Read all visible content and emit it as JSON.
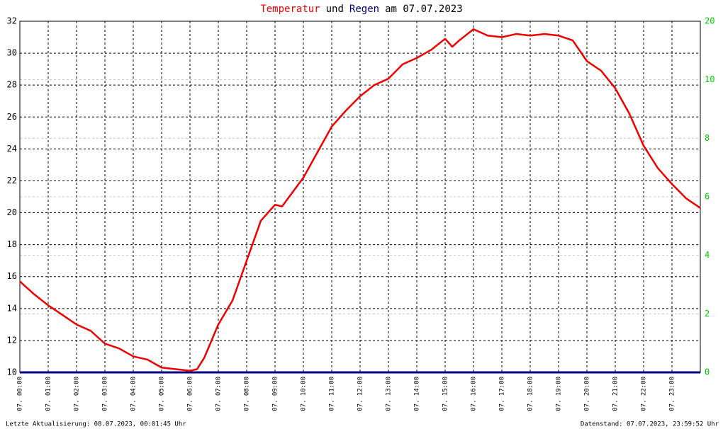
{
  "chart_data": {
    "type": "line",
    "title_parts": [
      {
        "text": "Temperatur",
        "color": "#ee0000"
      },
      {
        "text": "und",
        "color": "#000000"
      },
      {
        "text": "Regen",
        "color": "#000080"
      },
      {
        "text": "am 07.07.2023",
        "color": "#000000"
      }
    ],
    "footer_left": "Letzte Aktualisierung: 08.07.2023, 00:01:45 Uhr",
    "footer_right": "Datenstand: 07.07.2023, 23:59:52 Uhr",
    "x": [
      0,
      0.5,
      1,
      1.5,
      2,
      2.5,
      3,
      3.5,
      4,
      4.5,
      5,
      5.5,
      6,
      6.25,
      6.5,
      7,
      7.5,
      8,
      8.5,
      9,
      9.25,
      9.5,
      10,
      10.5,
      11,
      11.5,
      12,
      12.5,
      13,
      13.5,
      14,
      14.5,
      15,
      15.25,
      15.5,
      16,
      16.5,
      17,
      17.5,
      18,
      18.5,
      19,
      19.5,
      20,
      20.5,
      21,
      21.5,
      22,
      22.5,
      23,
      23.5,
      24
    ],
    "xlim": [
      0,
      24
    ],
    "xticks": [
      {
        "value": 0,
        "label": "07. 00:00"
      },
      {
        "value": 1,
        "label": "07. 01:00"
      },
      {
        "value": 2,
        "label": "07. 02:00"
      },
      {
        "value": 3,
        "label": "07. 03:00"
      },
      {
        "value": 4,
        "label": "07. 04:00"
      },
      {
        "value": 5,
        "label": "07. 05:00"
      },
      {
        "value": 6,
        "label": "07. 06:00"
      },
      {
        "value": 7,
        "label": "07. 07:00"
      },
      {
        "value": 8,
        "label": "07. 08:00"
      },
      {
        "value": 9,
        "label": "07. 09:00"
      },
      {
        "value": 10,
        "label": "07. 10:00"
      },
      {
        "value": 11,
        "label": "07. 11:00"
      },
      {
        "value": 12,
        "label": "07. 12:00"
      },
      {
        "value": 13,
        "label": "07. 13:00"
      },
      {
        "value": 14,
        "label": "07. 14:00"
      },
      {
        "value": 15,
        "label": "07. 15:00"
      },
      {
        "value": 16,
        "label": "07. 16:00"
      },
      {
        "value": 17,
        "label": "07. 17:00"
      },
      {
        "value": 18,
        "label": "07. 18:00"
      },
      {
        "value": 19,
        "label": "07. 19:00"
      },
      {
        "value": 20,
        "label": "07. 20:00"
      },
      {
        "value": 21,
        "label": "07. 21:00"
      },
      {
        "value": 22,
        "label": "07. 22:00"
      },
      {
        "value": 23,
        "label": "07. 23:00"
      }
    ],
    "ylim": [
      10,
      32
    ],
    "yticks": [
      10,
      12,
      14,
      16,
      18,
      20,
      22,
      24,
      26,
      28,
      30,
      32
    ],
    "y2lim": [
      0,
      12
    ],
    "y2ticks": [
      0,
      2,
      4,
      6,
      8,
      10
    ],
    "y2_top_label": "20",
    "grid": true,
    "series": [
      {
        "name": "Temperatur",
        "color": "#ee0000",
        "values": [
          15.7,
          14.9,
          14.2,
          13.6,
          13.0,
          12.6,
          11.8,
          11.5,
          11.0,
          10.8,
          10.3,
          10.2,
          10.1,
          10.2,
          10.9,
          13.0,
          14.5,
          17.0,
          19.5,
          20.5,
          20.4,
          21.0,
          22.2,
          23.8,
          25.4,
          26.4,
          27.3,
          28.0,
          28.4,
          29.3,
          29.7,
          30.2,
          30.9,
          30.4,
          30.8,
          31.5,
          31.1,
          31.0,
          31.2,
          31.1,
          31.2,
          31.1,
          30.8,
          29.5,
          28.9,
          27.8,
          26.2,
          24.2,
          22.8,
          21.8,
          20.9,
          20.3
        ]
      },
      {
        "name": "Regen",
        "color": "#000080",
        "axis": "y2",
        "values": [
          0,
          0,
          0,
          0,
          0,
          0,
          0,
          0,
          0,
          0,
          0,
          0,
          0,
          0,
          0,
          0,
          0,
          0,
          0,
          0,
          0,
          0,
          0,
          0,
          0,
          0,
          0,
          0,
          0,
          0,
          0,
          0,
          0,
          0,
          0,
          0,
          0,
          0,
          0,
          0,
          0,
          0,
          0,
          0,
          0,
          0,
          0,
          0,
          0,
          0,
          0,
          0
        ]
      }
    ]
  }
}
